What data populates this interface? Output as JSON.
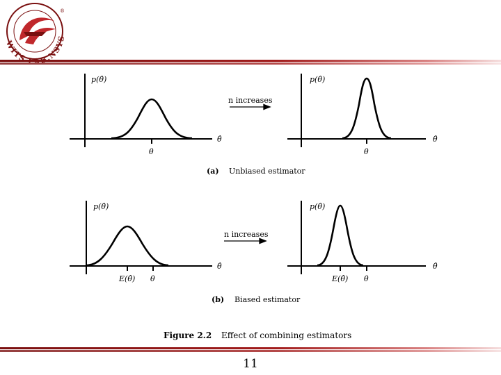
{
  "logo": {
    "text": "WITS LAB.NSYSU",
    "mark": "®"
  },
  "figure": {
    "panel_a": {
      "y_label_left": "p(θ̂)",
      "y_label_right": "p(θ̂)",
      "x_label_left": "θ̂",
      "x_label_right": "θ̂",
      "tick_left": "θ",
      "tick_right": "θ",
      "arrow_label": "n increases",
      "caption_letter": "(a)",
      "caption_text": "Unbiased estimator"
    },
    "panel_b": {
      "y_label_left": "p(θ̂)",
      "y_label_right": "p(θ̂)",
      "x_label_left": "θ̂",
      "x_label_right": "θ̂",
      "tick_left_mean": "E(θ̂)",
      "tick_left_true": "θ",
      "tick_right_mean": "E(θ̂)",
      "tick_right_true": "θ",
      "arrow_label": "n increases",
      "caption_letter": "(b)",
      "caption_text": "Biased estimator"
    },
    "caption_label": "Figure 2.2",
    "caption_text": "Effect of combining estimators"
  },
  "page_number": "11",
  "colors": {
    "bar_dark": "#7a1010",
    "bar_mid": "#c23030",
    "bar_light": "#f2d0d0",
    "logo_red": "#c0282c"
  }
}
